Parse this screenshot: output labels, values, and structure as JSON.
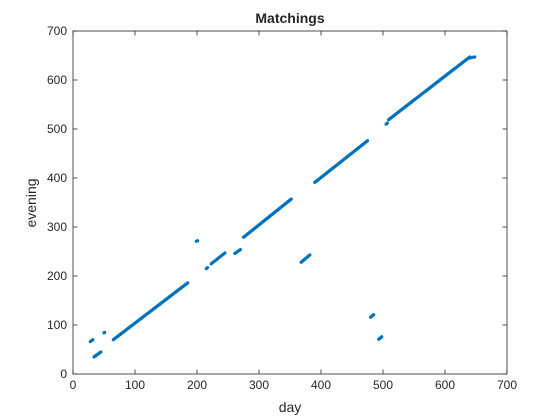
{
  "chart_data": {
    "type": "scatter",
    "title": "Matchings",
    "xlabel": "day",
    "ylabel": "evening",
    "xlim": [
      0,
      700
    ],
    "ylim": [
      0,
      700
    ],
    "xticks": [
      0,
      100,
      200,
      300,
      400,
      500,
      600,
      700
    ],
    "yticks": [
      0,
      100,
      200,
      300,
      400,
      500,
      600,
      700
    ],
    "grid": false,
    "box": true,
    "marker_color": "#0072BD",
    "segments": [
      {
        "x0": 28,
        "y0": 66,
        "x1": 32,
        "y1": 70,
        "n": 3
      },
      {
        "x0": 34,
        "y0": 35,
        "x1": 45,
        "y1": 45,
        "n": 8
      },
      {
        "x0": 50,
        "y0": 84,
        "x1": 51,
        "y1": 85,
        "n": 2
      },
      {
        "x0": 65,
        "y0": 70,
        "x1": 185,
        "y1": 186,
        "n": 80
      },
      {
        "x0": 199,
        "y0": 271,
        "x1": 201,
        "y1": 272,
        "n": 2
      },
      {
        "x0": 215,
        "y0": 215,
        "x1": 217,
        "y1": 217,
        "n": 2
      },
      {
        "x0": 223,
        "y0": 225,
        "x1": 245,
        "y1": 247,
        "n": 12
      },
      {
        "x0": 261,
        "y0": 246,
        "x1": 270,
        "y1": 254,
        "n": 6
      },
      {
        "x0": 275,
        "y0": 279,
        "x1": 352,
        "y1": 357,
        "n": 55
      },
      {
        "x0": 368,
        "y0": 228,
        "x1": 382,
        "y1": 243,
        "n": 9
      },
      {
        "x0": 390,
        "y0": 391,
        "x1": 475,
        "y1": 476,
        "n": 55
      },
      {
        "x0": 480,
        "y0": 116,
        "x1": 485,
        "y1": 121,
        "n": 4
      },
      {
        "x0": 493,
        "y0": 71,
        "x1": 498,
        "y1": 76,
        "n": 4
      },
      {
        "x0": 505,
        "y0": 510,
        "x1": 507,
        "y1": 512,
        "n": 2
      },
      {
        "x0": 509,
        "y0": 519,
        "x1": 640,
        "y1": 647,
        "n": 85
      },
      {
        "x0": 640,
        "y0": 645,
        "x1": 648,
        "y1": 647,
        "n": 5
      }
    ]
  }
}
